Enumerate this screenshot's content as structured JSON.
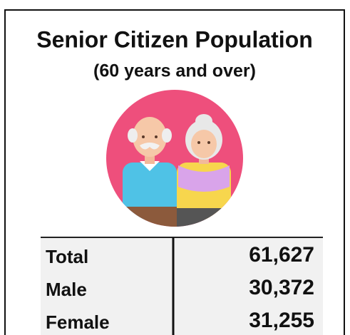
{
  "title": "Senior Citizen Population",
  "subtitle": "(60 years and over)",
  "table": {
    "rows": [
      [
        "Total",
        "61,627"
      ],
      [
        "Male",
        "30,372"
      ],
      [
        "Female",
        "31,255"
      ]
    ]
  }
}
